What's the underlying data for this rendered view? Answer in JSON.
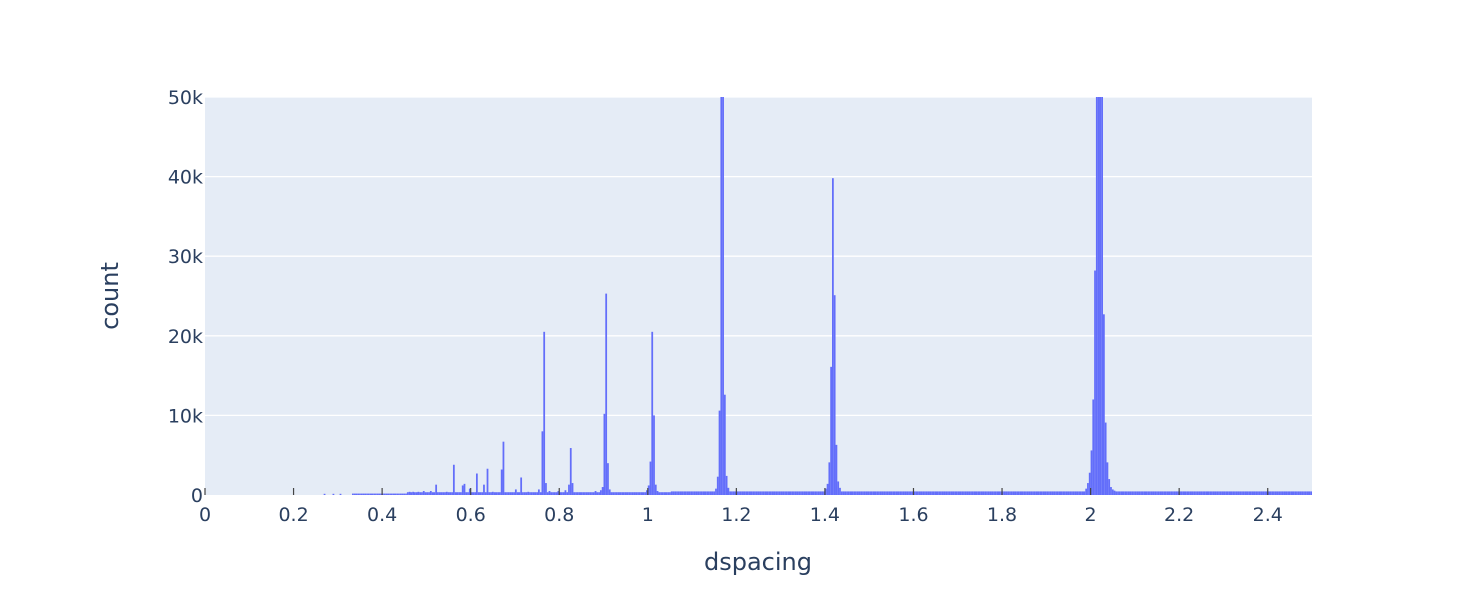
{
  "chart_data": {
    "type": "bar",
    "xlabel": "dspacing",
    "ylabel": "count",
    "xlim": [
      0,
      2.5
    ],
    "ylim": [
      0,
      50000
    ],
    "grid": "horizontal",
    "legend": "none",
    "bar_color": "#636efa",
    "plot_bg": "#e5ecf6",
    "x_ticks": [
      {
        "value": 0,
        "label": "0"
      },
      {
        "value": 0.2,
        "label": "0.2"
      },
      {
        "value": 0.4,
        "label": "0.4"
      },
      {
        "value": 0.6,
        "label": "0.6"
      },
      {
        "value": 0.8,
        "label": "0.8"
      },
      {
        "value": 1,
        "label": "1"
      },
      {
        "value": 1.2,
        "label": "1.2"
      },
      {
        "value": 1.4,
        "label": "1.4"
      },
      {
        "value": 1.6,
        "label": "1.6"
      },
      {
        "value": 1.8,
        "label": "1.8"
      },
      {
        "value": 2,
        "label": "2"
      },
      {
        "value": 2.2,
        "label": "2.2"
      },
      {
        "value": 2.4,
        "label": "2.4"
      }
    ],
    "y_ticks": [
      {
        "value": 0,
        "label": "0"
      },
      {
        "value": 10000,
        "label": "10k"
      },
      {
        "value": 20000,
        "label": "20k"
      },
      {
        "value": 30000,
        "label": "30k"
      },
      {
        "value": 40000,
        "label": "40k"
      },
      {
        "value": 50000,
        "label": "50k"
      }
    ],
    "bin_width": 0.004,
    "baseline": {
      "ranges": [
        [
          0.332,
          0.456,
          180
        ],
        [
          0.456,
          1.05,
          350
        ],
        [
          1.05,
          2.5,
          450
        ]
      ]
    },
    "bins": [
      [
        0.268,
        150
      ],
      [
        0.288,
        150
      ],
      [
        0.304,
        150
      ],
      [
        0.46,
        400
      ],
      [
        0.468,
        400
      ],
      [
        0.48,
        400
      ],
      [
        0.492,
        500
      ],
      [
        0.508,
        500
      ],
      [
        0.52,
        1300
      ],
      [
        0.544,
        400
      ],
      [
        0.56,
        3800
      ],
      [
        0.58,
        1200
      ],
      [
        0.584,
        1400
      ],
      [
        0.596,
        800
      ],
      [
        0.612,
        2700
      ],
      [
        0.628,
        1300
      ],
      [
        0.636,
        3300
      ],
      [
        0.648,
        400
      ],
      [
        0.668,
        3200
      ],
      [
        0.672,
        6700
      ],
      [
        0.7,
        700
      ],
      [
        0.712,
        2200
      ],
      [
        0.728,
        400
      ],
      [
        0.752,
        700
      ],
      [
        0.76,
        8000
      ],
      [
        0.764,
        20500
      ],
      [
        0.768,
        1500
      ],
      [
        0.776,
        500
      ],
      [
        0.796,
        500
      ],
      [
        0.812,
        600
      ],
      [
        0.82,
        1300
      ],
      [
        0.824,
        5900
      ],
      [
        0.828,
        1500
      ],
      [
        0.88,
        500
      ],
      [
        0.892,
        600
      ],
      [
        0.896,
        1000
      ],
      [
        0.9,
        10200
      ],
      [
        0.904,
        25300
      ],
      [
        0.908,
        4000
      ],
      [
        0.912,
        700
      ],
      [
        0.996,
        600
      ],
      [
        1.0,
        1200
      ],
      [
        1.004,
        4200
      ],
      [
        1.008,
        20500
      ],
      [
        1.012,
        10000
      ],
      [
        1.016,
        1300
      ],
      [
        1.02,
        500
      ],
      [
        1.152,
        800
      ],
      [
        1.156,
        2300
      ],
      [
        1.16,
        10600
      ],
      [
        1.164,
        50000
      ],
      [
        1.168,
        50000
      ],
      [
        1.172,
        12600
      ],
      [
        1.176,
        2400
      ],
      [
        1.18,
        900
      ],
      [
        1.4,
        800
      ],
      [
        1.404,
        1400
      ],
      [
        1.408,
        4100
      ],
      [
        1.412,
        16100
      ],
      [
        1.416,
        39800
      ],
      [
        1.42,
        25100
      ],
      [
        1.424,
        6300
      ],
      [
        1.428,
        1700
      ],
      [
        1.432,
        900
      ],
      [
        1.988,
        800
      ],
      [
        1.992,
        1500
      ],
      [
        1.996,
        2800
      ],
      [
        2.0,
        5600
      ],
      [
        2.004,
        12000
      ],
      [
        2.008,
        28200
      ],
      [
        2.012,
        50000
      ],
      [
        2.016,
        50000
      ],
      [
        2.02,
        50000
      ],
      [
        2.024,
        50000
      ],
      [
        2.028,
        22700
      ],
      [
        2.032,
        9100
      ],
      [
        2.036,
        4100
      ],
      [
        2.04,
        2000
      ],
      [
        2.044,
        1000
      ],
      [
        2.048,
        700
      ],
      [
        2.052,
        550
      ]
    ]
  }
}
